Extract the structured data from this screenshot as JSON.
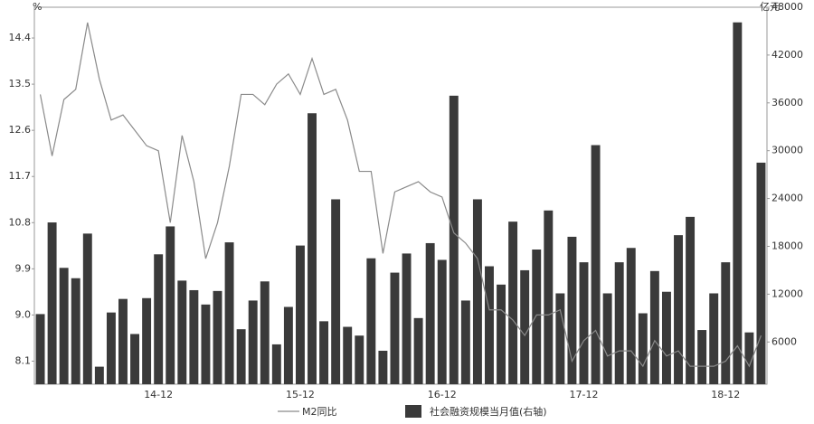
{
  "chart_data": {
    "type": "bar",
    "y_label": "%",
    "y2_label": "亿元",
    "categories": [
      null,
      null,
      null,
      null,
      null,
      null,
      null,
      null,
      null,
      null,
      "14-12",
      null,
      null,
      null,
      null,
      null,
      null,
      null,
      null,
      null,
      null,
      null,
      "15-12",
      null,
      null,
      null,
      null,
      null,
      null,
      null,
      null,
      null,
      null,
      null,
      "16-12",
      null,
      null,
      null,
      null,
      null,
      null,
      null,
      null,
      null,
      null,
      null,
      "17-12",
      null,
      null,
      null,
      null,
      null,
      null,
      null,
      null,
      null,
      null,
      null,
      "18-12",
      null,
      null,
      null
    ],
    "ylim": [
      7.65,
      15.0
    ],
    "yticks": [
      8.1,
      {
        "value": 9,
        "label": "9.0"
      },
      9.9,
      10.8,
      11.7,
      12.6,
      13.5,
      14.4
    ],
    "y2lim": [
      700,
      48000
    ],
    "y2ticks": [
      6000,
      12000,
      18000,
      24000,
      30000,
      36000,
      42000,
      48000
    ],
    "series": [
      {
        "name": "M2同比",
        "type": "line",
        "color": "#8a8a8a",
        "values": [
          13.3,
          12.1,
          13.2,
          13.4,
          14.7,
          13.6,
          12.8,
          12.9,
          12.6,
          12.3,
          12.2,
          10.8,
          12.5,
          11.6,
          10.1,
          10.8,
          11.9,
          13.3,
          13.3,
          13.1,
          13.5,
          13.7,
          13.3,
          14.0,
          13.3,
          13.4,
          12.8,
          11.8,
          11.8,
          10.2,
          11.4,
          11.5,
          11.6,
          11.4,
          11.3,
          10.6,
          10.4,
          10.1,
          9.1,
          9.1,
          8.9,
          8.6,
          9.0,
          9.0,
          9.1,
          8.1,
          8.5,
          8.7,
          8.2,
          8.3,
          8.3,
          8.0,
          8.5,
          8.2,
          8.3,
          8.0,
          8.0,
          8.0,
          8.1,
          8.4,
          8.0,
          8.6
        ]
      },
      {
        "name": "社会融资规模当月值(右轴)",
        "type": "bar",
        "axis": "y2",
        "color": "#3a3a3a",
        "values": [
          9500,
          21000,
          15300,
          14000,
          19600,
          2900,
          9700,
          11400,
          7000,
          11500,
          17000,
          20500,
          13700,
          12500,
          10700,
          12400,
          18500,
          7600,
          11200,
          13600,
          5700,
          10400,
          18100,
          34700,
          8600,
          23900,
          7900,
          6800,
          16500,
          4900,
          14700,
          17100,
          9000,
          18400,
          16300,
          36900,
          11200,
          23900,
          15500,
          13200,
          21100,
          15000,
          17600,
          22500,
          12100,
          19200,
          16000,
          30700,
          12100,
          16000,
          17800,
          9600,
          14900,
          12300,
          19400,
          21700,
          7500,
          12100,
          16000,
          46100,
          7200,
          28500
        ]
      }
    ]
  }
}
